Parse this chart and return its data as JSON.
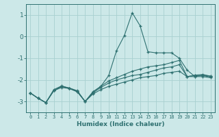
{
  "xlabel": "Humidex (Indice chaleur)",
  "background_color": "#cce8e8",
  "grid_color": "#a8d0d0",
  "line_color": "#2e7070",
  "x_ticks": [
    0,
    1,
    2,
    3,
    4,
    5,
    6,
    7,
    8,
    9,
    10,
    11,
    12,
    13,
    14,
    15,
    16,
    17,
    18,
    19,
    20,
    21,
    22,
    23
  ],
  "ylim": [
    -3.5,
    1.5
  ],
  "xlim": [
    -0.5,
    23.5
  ],
  "yticks": [
    -3,
    -2,
    -1,
    0,
    1
  ],
  "lines": [
    {
      "x": [
        0,
        1,
        2,
        3,
        4,
        5,
        6,
        7,
        8,
        9,
        10,
        11,
        12,
        13,
        14,
        15,
        16,
        17,
        18,
        19,
        20,
        21,
        22,
        23
      ],
      "y": [
        -2.6,
        -2.85,
        -3.05,
        -2.5,
        -2.35,
        -2.4,
        -2.55,
        -3.0,
        -2.65,
        -2.45,
        -2.3,
        -2.2,
        -2.1,
        -2.0,
        -1.9,
        -1.85,
        -1.8,
        -1.7,
        -1.65,
        -1.6,
        -1.85,
        -1.85,
        -1.85,
        -1.9
      ]
    },
    {
      "x": [
        0,
        1,
        2,
        3,
        4,
        5,
        6,
        7,
        8,
        9,
        10,
        11,
        12,
        13,
        14,
        15,
        16,
        17,
        18,
        19,
        20,
        21,
        22,
        23
      ],
      "y": [
        -2.6,
        -2.85,
        -3.05,
        -2.5,
        -2.3,
        -2.38,
        -2.52,
        -3.0,
        -2.6,
        -2.35,
        -2.15,
        -2.0,
        -1.9,
        -1.8,
        -1.75,
        -1.65,
        -1.55,
        -1.45,
        -1.4,
        -1.3,
        -1.85,
        -1.8,
        -1.8,
        -1.87
      ]
    },
    {
      "x": [
        0,
        1,
        2,
        3,
        4,
        5,
        6,
        7,
        8,
        9,
        10,
        11,
        12,
        13,
        14,
        15,
        16,
        17,
        18,
        19,
        20,
        21,
        22,
        23
      ],
      "y": [
        -2.6,
        -2.85,
        -3.05,
        -2.45,
        -2.28,
        -2.38,
        -2.5,
        -3.0,
        -2.55,
        -2.3,
        -2.05,
        -1.9,
        -1.75,
        -1.6,
        -1.5,
        -1.4,
        -1.35,
        -1.3,
        -1.2,
        -1.1,
        -1.85,
        -1.78,
        -1.75,
        -1.83
      ]
    },
    {
      "x": [
        0,
        1,
        2,
        3,
        4,
        5,
        6,
        7,
        8,
        9,
        10,
        11,
        12,
        13,
        14,
        15,
        16,
        17,
        18,
        19,
        20,
        21,
        22,
        23
      ],
      "y": [
        -2.6,
        -2.85,
        -3.05,
        -2.5,
        -2.3,
        -2.4,
        -2.55,
        -3.0,
        -2.55,
        -2.3,
        -1.8,
        -0.65,
        0.05,
        1.1,
        0.5,
        -0.7,
        -0.75,
        -0.75,
        -0.75,
        -1.0,
        -1.55,
        -1.85,
        -1.78,
        -1.83
      ]
    }
  ]
}
